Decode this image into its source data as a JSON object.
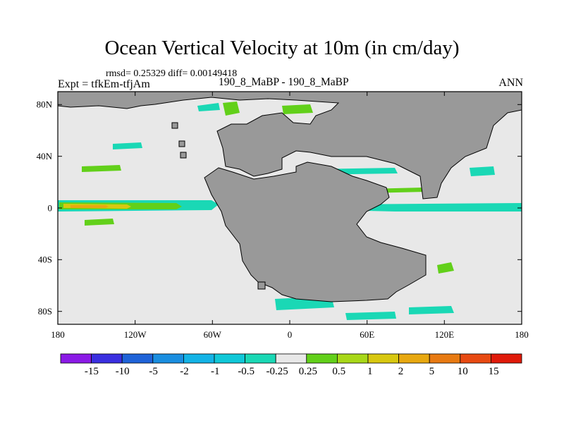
{
  "figure": {
    "title": "Ocean Vertical Velocity at 10m (in cm/day)",
    "stats": "rmsd= 0.25329 diff= 0.00149418",
    "experiment": "Expt = tfkEm-tfjAm",
    "cases": "190_8_MaBP - 190_8_MaBP",
    "season": "ANN"
  },
  "axes": {
    "x_ticks": [
      "180",
      "120W",
      "60W",
      "0",
      "60E",
      "120E",
      "180"
    ],
    "x_tick_values": [
      -180,
      -120,
      -60,
      0,
      60,
      120,
      180
    ],
    "y_ticks": [
      "80N",
      "40N",
      "0",
      "40S",
      "80S"
    ],
    "y_tick_values": [
      80,
      40,
      0,
      -40,
      -80
    ],
    "lon_range": [
      -180,
      180
    ],
    "lat_range": [
      -90,
      90
    ]
  },
  "colorbar": {
    "labels": [
      "-15",
      "-10",
      "-5",
      "-2",
      "-1",
      "-0.5",
      "-0.25",
      "0.25",
      "0.5",
      "1",
      "2",
      "5",
      "10",
      "15"
    ],
    "colors": [
      "#8b1ae6",
      "#3a2fe0",
      "#1f63d8",
      "#1a8ee0",
      "#13b3e6",
      "#10c8d8",
      "#1ad8b5",
      "#e8e8e8",
      "#62d01a",
      "#a8d818",
      "#d8c810",
      "#e8a810",
      "#e87a12",
      "#e84a12",
      "#e01a0a"
    ]
  },
  "colors": {
    "land": "#999999",
    "ocean_neutral": "#e8e8e8",
    "outline": "#000000"
  }
}
